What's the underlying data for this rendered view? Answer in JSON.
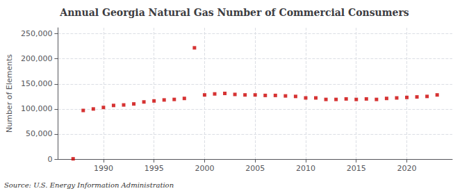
{
  "chart_data": {
    "type": "scatter",
    "title": "Annual Georgia Natural Gas Number of Commercial Consumers",
    "ylabel": "Number of Elements",
    "annotation": "Source: U.S. Energy Information Administration",
    "x": [
      1987,
      1988,
      1989,
      1990,
      1991,
      1992,
      1993,
      1994,
      1995,
      1996,
      1997,
      1998,
      1999,
      2000,
      2001,
      2002,
      2003,
      2004,
      2005,
      2006,
      2007,
      2008,
      2009,
      2010,
      2011,
      2012,
      2013,
      2014,
      2015,
      2016,
      2017,
      2018,
      2019,
      2020,
      2021,
      2022,
      2023
    ],
    "values": [
      500,
      97000,
      100000,
      103000,
      107000,
      108000,
      110000,
      114000,
      116000,
      118000,
      119000,
      121000,
      222000,
      128000,
      130000,
      131000,
      129000,
      128000,
      128000,
      127000,
      127000,
      126000,
      125000,
      122000,
      122000,
      119000,
      119000,
      120000,
      119000,
      120000,
      119000,
      121000,
      122000,
      123000,
      124000,
      125000,
      128000
    ],
    "color": "#cc0000",
    "marker": "square",
    "xlim": [
      1985.5,
      2024.5
    ],
    "xticks": [
      1990,
      1995,
      2000,
      2005,
      2010,
      2015,
      2020
    ],
    "ylim": [
      0,
      262000
    ],
    "yticks": [
      0,
      {
        "value": 50000,
        "label": "50,000"
      },
      {
        "value": 100000,
        "label": "100,000"
      },
      {
        "value": 150000,
        "label": "150,000"
      },
      {
        "value": 200000,
        "label": "200,000"
      },
      {
        "value": 250000,
        "label": "250,000"
      }
    ],
    "grid": true
  }
}
